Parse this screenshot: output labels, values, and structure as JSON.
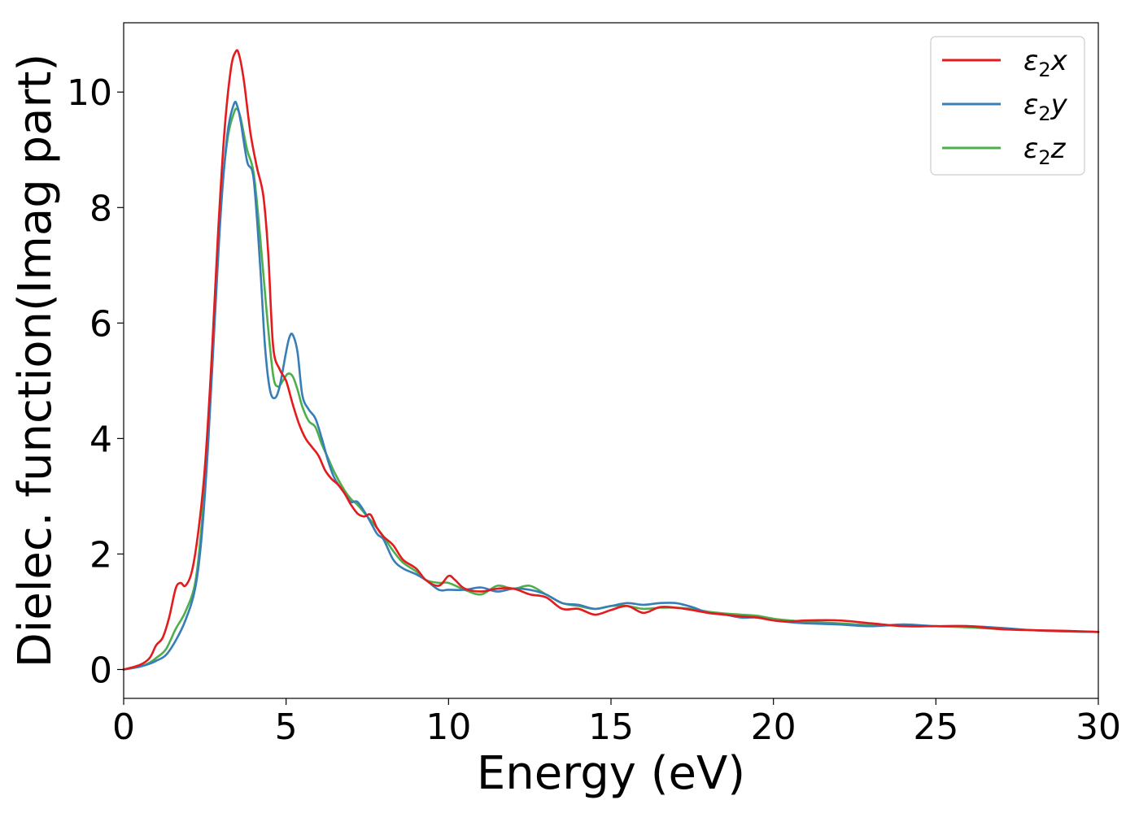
{
  "chart_data": {
    "type": "line",
    "title": "",
    "xlabel": "Energy (eV)",
    "ylabel": "Dielec. function(Imag part)",
    "xlim": [
      0,
      30
    ],
    "ylim": [
      -0.5,
      11.2
    ],
    "xticks": [
      0,
      5,
      10,
      15,
      20,
      25,
      30
    ],
    "yticks": [
      0,
      2,
      4,
      6,
      8,
      10
    ],
    "grid": false,
    "legend_position": "top-right",
    "series": [
      {
        "name": "ε2x",
        "legend_base": "ε",
        "legend_sub": "2",
        "legend_var": "x",
        "color": "#e41a1c",
        "x": [
          0,
          0.5,
          0.8,
          1.0,
          1.2,
          1.4,
          1.6,
          1.75,
          1.9,
          2.1,
          2.3,
          2.5,
          2.7,
          2.9,
          3.1,
          3.3,
          3.45,
          3.55,
          3.7,
          3.9,
          4.1,
          4.3,
          4.45,
          4.6,
          4.8,
          5.0,
          5.2,
          5.4,
          5.6,
          5.8,
          6.0,
          6.2,
          6.4,
          6.6,
          6.8,
          7.0,
          7.2,
          7.4,
          7.6,
          7.8,
          8.0,
          8.3,
          8.6,
          9.0,
          9.3,
          9.7,
          10.0,
          10.2,
          10.5,
          11.0,
          11.5,
          12.0,
          12.5,
          13.0,
          13.5,
          14.0,
          14.5,
          15.0,
          15.5,
          16.0,
          16.5,
          17.0,
          17.5,
          18.0,
          18.5,
          19.0,
          19.5,
          20.0,
          20.5,
          21.0,
          22.0,
          23.0,
          24.0,
          25.0,
          26.0,
          27.0,
          28.0,
          29.0,
          30.0
        ],
        "values": [
          0,
          0.08,
          0.2,
          0.42,
          0.55,
          0.9,
          1.4,
          1.5,
          1.45,
          1.7,
          2.4,
          3.5,
          5.3,
          7.5,
          9.3,
          10.4,
          10.7,
          10.65,
          10.2,
          9.3,
          8.7,
          8.2,
          7.2,
          5.6,
          5.2,
          5.0,
          4.6,
          4.25,
          4.0,
          3.85,
          3.7,
          3.45,
          3.3,
          3.2,
          3.05,
          2.85,
          2.7,
          2.65,
          2.68,
          2.45,
          2.3,
          2.15,
          1.9,
          1.75,
          1.55,
          1.45,
          1.62,
          1.55,
          1.4,
          1.35,
          1.4,
          1.4,
          1.3,
          1.25,
          1.05,
          1.05,
          0.95,
          1.03,
          1.1,
          0.98,
          1.08,
          1.07,
          1.03,
          0.98,
          0.95,
          0.92,
          0.9,
          0.85,
          0.83,
          0.85,
          0.85,
          0.8,
          0.75,
          0.75,
          0.75,
          0.7,
          0.68,
          0.67,
          0.65
        ]
      },
      {
        "name": "ε2y",
        "legend_base": "ε",
        "legend_sub": "2",
        "legend_var": "y",
        "color": "#377eb8",
        "x": [
          0,
          0.5,
          0.8,
          1.0,
          1.3,
          1.6,
          1.9,
          2.2,
          2.4,
          2.6,
          2.8,
          3.0,
          3.2,
          3.4,
          3.5,
          3.6,
          3.8,
          4.0,
          4.2,
          4.35,
          4.5,
          4.65,
          4.8,
          5.0,
          5.1,
          5.2,
          5.35,
          5.5,
          5.7,
          5.9,
          6.1,
          6.3,
          6.5,
          6.8,
          7.0,
          7.2,
          7.5,
          7.8,
          8.0,
          8.3,
          8.6,
          9.0,
          9.3,
          9.7,
          10.0,
          10.5,
          11.0,
          11.5,
          12.0,
          12.5,
          13.0,
          13.5,
          14.0,
          14.5,
          15.0,
          15.5,
          16.0,
          16.5,
          17.0,
          17.5,
          18.0,
          18.5,
          19.0,
          19.5,
          20.0,
          20.5,
          21.0,
          22.0,
          23.0,
          24.0,
          25.0,
          26.0,
          27.0,
          28.0,
          29.0,
          30.0
        ],
        "values": [
          0,
          0.05,
          0.1,
          0.15,
          0.25,
          0.5,
          0.85,
          1.4,
          2.3,
          3.9,
          6.0,
          8.0,
          9.3,
          9.8,
          9.75,
          9.5,
          8.8,
          8.5,
          7.0,
          5.6,
          4.85,
          4.7,
          4.9,
          5.5,
          5.75,
          5.8,
          5.5,
          4.75,
          4.5,
          4.35,
          4.0,
          3.6,
          3.3,
          3.05,
          2.9,
          2.9,
          2.65,
          2.35,
          2.25,
          1.9,
          1.75,
          1.65,
          1.55,
          1.38,
          1.38,
          1.38,
          1.42,
          1.35,
          1.4,
          1.38,
          1.3,
          1.15,
          1.12,
          1.05,
          1.1,
          1.15,
          1.12,
          1.15,
          1.15,
          1.08,
          0.98,
          0.95,
          0.9,
          0.9,
          0.85,
          0.82,
          0.8,
          0.78,
          0.75,
          0.78,
          0.75,
          0.75,
          0.72,
          0.68,
          0.66,
          0.65
        ]
      },
      {
        "name": "ε2z",
        "legend_base": "ε",
        "legend_sub": "2",
        "legend_var": "z",
        "color": "#4daf4a",
        "x": [
          0,
          0.5,
          0.8,
          1.0,
          1.3,
          1.6,
          1.9,
          2.2,
          2.4,
          2.6,
          2.8,
          3.0,
          3.2,
          3.4,
          3.5,
          3.6,
          3.8,
          4.0,
          4.2,
          4.4,
          4.6,
          4.75,
          4.9,
          5.05,
          5.2,
          5.35,
          5.5,
          5.7,
          5.9,
          6.1,
          6.3,
          6.5,
          6.8,
          7.0,
          7.2,
          7.5,
          7.8,
          8.0,
          8.3,
          8.6,
          9.0,
          9.3,
          9.7,
          10.0,
          10.5,
          11.0,
          11.5,
          12.0,
          12.5,
          13.0,
          13.5,
          14.0,
          14.5,
          15.0,
          15.5,
          16.0,
          16.5,
          17.0,
          17.5,
          18.0,
          18.5,
          19.0,
          19.5,
          20.0,
          20.5,
          21.0,
          22.0,
          23.0,
          24.0,
          25.0,
          26.0,
          27.0,
          28.0,
          29.0,
          30.0
        ],
        "values": [
          0,
          0.05,
          0.12,
          0.2,
          0.35,
          0.7,
          1.0,
          1.5,
          2.5,
          4.2,
          6.3,
          8.1,
          9.2,
          9.65,
          9.7,
          9.55,
          9.0,
          8.6,
          7.5,
          6.2,
          5.1,
          4.9,
          5.0,
          5.12,
          5.08,
          4.85,
          4.55,
          4.3,
          4.2,
          3.9,
          3.65,
          3.4,
          3.1,
          2.95,
          2.85,
          2.65,
          2.45,
          2.3,
          2.05,
          1.85,
          1.7,
          1.55,
          1.5,
          1.5,
          1.38,
          1.3,
          1.45,
          1.4,
          1.45,
          1.3,
          1.15,
          1.1,
          1.05,
          1.1,
          1.1,
          1.05,
          1.07,
          1.07,
          1.05,
          1.0,
          0.97,
          0.95,
          0.93,
          0.88,
          0.85,
          0.83,
          0.8,
          0.77,
          0.76,
          0.75,
          0.73,
          0.7,
          0.68,
          0.66,
          0.65
        ]
      }
    ]
  }
}
